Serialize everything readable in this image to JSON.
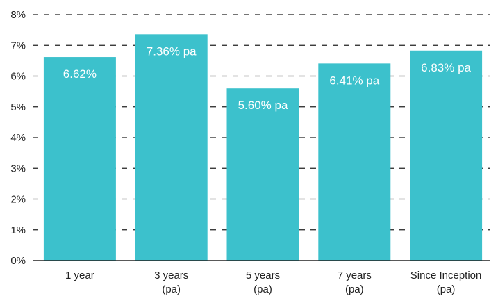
{
  "chart_data": {
    "type": "bar",
    "title": "",
    "xlabel": "",
    "ylabel": "",
    "categories": [
      [
        "1 year"
      ],
      [
        "3 years",
        "(pa)"
      ],
      [
        "5 years",
        "(pa)"
      ],
      [
        "7 years",
        "(pa)"
      ],
      [
        "Since Inception",
        "(pa)"
      ]
    ],
    "values": [
      6.62,
      7.36,
      5.6,
      6.41,
      6.83
    ],
    "data_labels": [
      "6.62%",
      "7.36% pa",
      "5.60% pa",
      "6.41% pa",
      "6.83% pa"
    ],
    "ylim": [
      0,
      8
    ],
    "yticks": [
      0,
      1,
      2,
      3,
      4,
      5,
      6,
      7,
      8
    ],
    "ytick_labels": [
      "0%",
      "1%",
      "2%",
      "3%",
      "4%",
      "5%",
      "6%",
      "7%",
      "8%"
    ],
    "grid": "horizontal-dashed",
    "legend": "none",
    "colors": {
      "bar": "#3cc1cc",
      "grid": "#222222",
      "axis": "#222222",
      "label": "#ffffff"
    }
  }
}
